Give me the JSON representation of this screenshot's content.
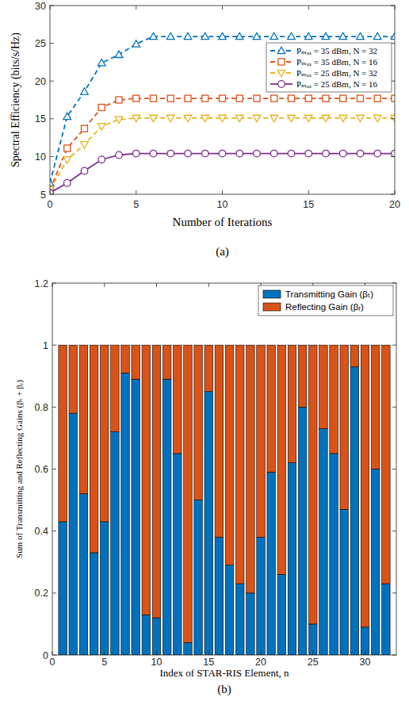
{
  "chart_data": [
    {
      "type": "line",
      "title": "(a)",
      "x_label": "Number of Iterations",
      "y_label": "Spectral Efficiency (bits/s/Hz)",
      "x": [
        0,
        1,
        2,
        3,
        4,
        5,
        6,
        7,
        8,
        9,
        10,
        11,
        12,
        13,
        14,
        15,
        16,
        17,
        18,
        19,
        20
      ],
      "xlim": [
        0,
        20
      ],
      "xticks": [
        0,
        5,
        10,
        15,
        20
      ],
      "ylim": [
        5,
        30
      ],
      "yticks": [
        5,
        10,
        15,
        20,
        25,
        30
      ],
      "grid": false,
      "legend": "upper right",
      "series": [
        {
          "name": "Pₘₐₓ = 35 dBm, N = 32",
          "color": "#0072bd",
          "marker": "triangle-up",
          "line_style": "dashed",
          "values": [
            6.5,
            15.3,
            18.6,
            22.4,
            23.5,
            24.9,
            25.9,
            25.9,
            25.9,
            25.9,
            25.9,
            25.9,
            25.9,
            25.9,
            25.9,
            25.9,
            25.9,
            25.9,
            25.9,
            25.9,
            25.9
          ]
        },
        {
          "name": "Pₘₐₓ = 35 dBm, N = 16",
          "color": "#d95319",
          "marker": "square",
          "line_style": "dashed",
          "values": [
            5.6,
            11.1,
            13.7,
            16.5,
            17.5,
            17.7,
            17.7,
            17.7,
            17.7,
            17.7,
            17.7,
            17.7,
            17.7,
            17.7,
            17.7,
            17.7,
            17.7,
            17.7,
            17.7,
            17.7,
            17.7
          ]
        },
        {
          "name": "Pₘₐₓ = 25 dBm, N = 32",
          "color": "#edb120",
          "marker": "triangle-down",
          "line_style": "dashed",
          "values": [
            5.6,
            9.6,
            11.6,
            14.0,
            14.9,
            15.1,
            15.1,
            15.1,
            15.1,
            15.1,
            15.1,
            15.1,
            15.1,
            15.1,
            15.1,
            15.1,
            15.1,
            15.1,
            15.1,
            15.1,
            15.1
          ]
        },
        {
          "name": "Pₘₐₓ = 25 dBm, N = 16",
          "color": "#7e2f8e",
          "marker": "circle",
          "line_style": "solid",
          "values": [
            5.2,
            6.5,
            8.1,
            9.6,
            10.2,
            10.4,
            10.4,
            10.4,
            10.4,
            10.4,
            10.4,
            10.4,
            10.4,
            10.4,
            10.4,
            10.4,
            10.4,
            10.4,
            10.4,
            10.4,
            10.4
          ]
        }
      ]
    },
    {
      "type": "bar",
      "stacked": true,
      "title": "(b)",
      "x_label": "Index of STAR-RIS Element, n",
      "y_label": "Sum of Transmitting and Reflecting Gains (βₜ + βᵣ)",
      "x": [
        1,
        2,
        3,
        4,
        5,
        6,
        7,
        8,
        9,
        10,
        11,
        12,
        13,
        14,
        15,
        16,
        17,
        18,
        19,
        20,
        21,
        22,
        23,
        24,
        25,
        26,
        27,
        28,
        29,
        30,
        31,
        32
      ],
      "xlim": [
        0,
        33
      ],
      "xticks": [
        0,
        5,
        10,
        15,
        20,
        25,
        30
      ],
      "ylim": [
        0,
        1.2
      ],
      "yticks": [
        0,
        0.2,
        0.4,
        0.6,
        0.8,
        1,
        1.2
      ],
      "grid": false,
      "legend": "upper right",
      "series": [
        {
          "name": "Transmitting Gain (βₜ)",
          "color": "#0072bd",
          "values": [
            0.43,
            0.78,
            0.52,
            0.33,
            0.43,
            0.72,
            0.91,
            0.89,
            0.13,
            0.12,
            0.89,
            0.65,
            0.04,
            0.5,
            0.85,
            0.38,
            0.29,
            0.23,
            0.2,
            0.38,
            0.59,
            0.26,
            0.62,
            0.8,
            0.1,
            0.73,
            0.65,
            0.47,
            0.93,
            0.09,
            0.6,
            0.23
          ]
        },
        {
          "name": "Reflecting Gain (βᵣ)",
          "color": "#d95319",
          "values": [
            0.57,
            0.22,
            0.48,
            0.67,
            0.57,
            0.28,
            0.09,
            0.11,
            0.87,
            0.88,
            0.11,
            0.35,
            0.96,
            0.5,
            0.15,
            0.62,
            0.71,
            0.77,
            0.8,
            0.62,
            0.41,
            0.74,
            0.38,
            0.2,
            0.9,
            0.27,
            0.35,
            0.53,
            0.07,
            0.91,
            0.4,
            0.77
          ]
        }
      ]
    }
  ]
}
